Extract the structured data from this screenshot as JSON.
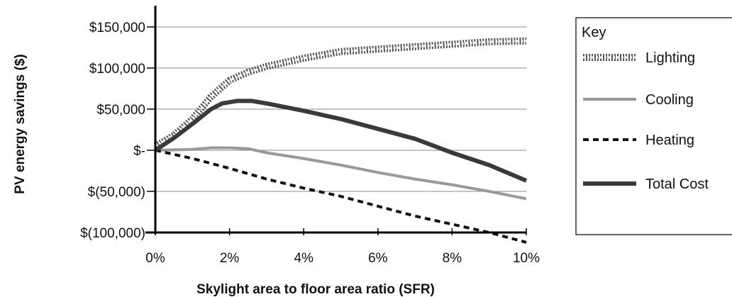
{
  "chart_data": {
    "type": "line",
    "title": "",
    "xlabel": "Skylight area to floor area ratio (SFR)",
    "ylabel": "PV energy savings ($)",
    "xlim": [
      0,
      10
    ],
    "ylim": [
      -100000,
      150000
    ],
    "grid": true,
    "x_tick_labels": [
      "0%",
      "2%",
      "4%",
      "6%",
      "8%",
      "10%"
    ],
    "y_tick_labels": [
      "$(100,000)",
      "$(50,000)",
      "$-",
      "$50,000",
      "$100,000",
      "$150,000"
    ],
    "legend": {
      "title": "Key",
      "placement": "right"
    },
    "series": [
      {
        "name": "Lighting",
        "color": "#555555",
        "style": "dotted-band",
        "x": [
          0,
          0.5,
          1,
          1.5,
          2,
          2.5,
          3,
          4,
          5,
          6,
          7,
          8,
          9,
          10
        ],
        "y": [
          5000,
          18000,
          38000,
          65000,
          85000,
          95000,
          102000,
          112000,
          120000,
          123000,
          126000,
          129000,
          132000,
          133000
        ]
      },
      {
        "name": "Cooling",
        "color": "#999999",
        "style": "solid",
        "x": [
          0,
          1,
          1.5,
          2,
          2.5,
          3,
          4,
          5,
          6,
          7,
          8,
          9,
          10
        ],
        "y": [
          0,
          1000,
          3000,
          3000,
          2000,
          -3000,
          -10000,
          -18000,
          -27000,
          -35000,
          -42000,
          -50000,
          -59000
        ]
      },
      {
        "name": "Heating",
        "color": "#111111",
        "style": "dashed",
        "x": [
          0,
          1,
          2,
          3,
          4,
          5,
          6,
          7,
          8,
          9,
          10
        ],
        "y": [
          0,
          -10000,
          -22000,
          -35000,
          -46000,
          -56000,
          -68000,
          -80000,
          -90000,
          -100000,
          -112000
        ]
      },
      {
        "name": "Total Cost",
        "color": "#3a3a3a",
        "style": "thick-solid",
        "x": [
          0,
          0.5,
          1,
          1.5,
          1.8,
          2.2,
          2.6,
          3,
          4,
          5,
          6,
          7,
          8,
          9,
          10
        ],
        "y": [
          0,
          15000,
          32000,
          50000,
          57000,
          60000,
          60000,
          57000,
          48000,
          38000,
          26000,
          14000,
          -3000,
          -18000,
          -37000
        ]
      }
    ]
  }
}
